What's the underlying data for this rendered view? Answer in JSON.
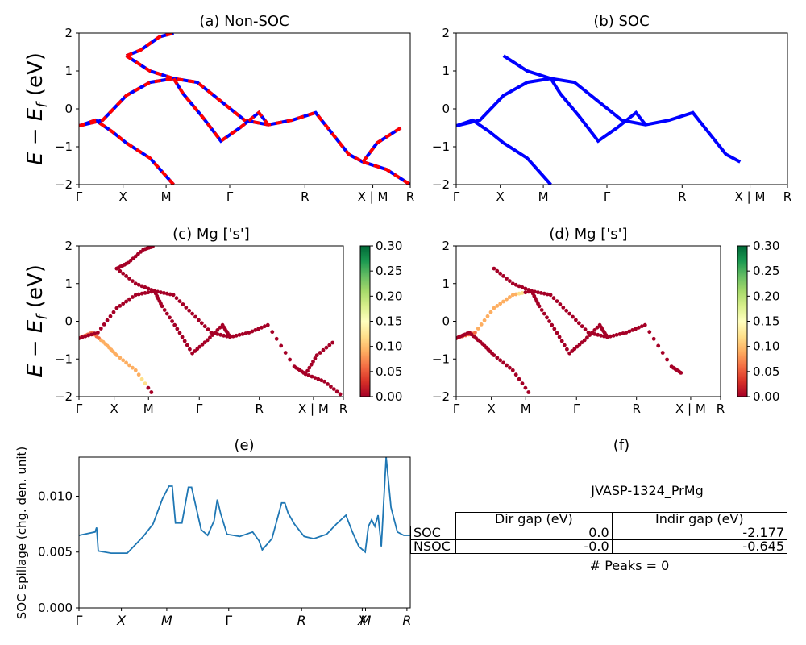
{
  "panels": {
    "a": {
      "title": "(a) Non-SOC"
    },
    "b": {
      "title": "(b) SOC"
    },
    "c": {
      "title": "(c)  Mg ['s']"
    },
    "d": {
      "title": "(d) Mg ['s']"
    },
    "e": {
      "title": "(e)"
    },
    "f": {
      "title": "(f)"
    }
  },
  "ylabel_band": "E − E",
  "ylabel_sub": "f",
  "ylabel_unit": " (eV)",
  "kpath": [
    "Γ",
    "X",
    "M",
    "Γ",
    "R",
    "X | M",
    "R"
  ],
  "kpath_spillage": [
    "Γ",
    "X",
    "M",
    "Γ",
    "R",
    "X",
    "M",
    "R"
  ],
  "colorbar": {
    "ticks": [
      "0.30",
      "0.25",
      "0.20",
      "0.15",
      "0.10",
      "0.05",
      "0.00"
    ]
  },
  "colors": {
    "nonsoc_red": "#ff0000",
    "nonsoc_blue": "#0000ff",
    "soc_blue": "#0000ff",
    "spillage_line": "#1f77b4"
  },
  "info": {
    "material": "JVASP-1324_PrMg",
    "col_headers": [
      "Dir gap (eV)",
      "Indir gap (eV)"
    ],
    "rows": [
      {
        "label": "SOC",
        "dir": "0.0",
        "indir": "-2.177"
      },
      {
        "label": "NSOC",
        "dir": "-0.0",
        "indir": "-0.645"
      }
    ],
    "peaks": "# Peaks = 0"
  },
  "chart_data": [
    {
      "type": "line",
      "title": "(a) Non-SOC",
      "ylabel": "E − E_f (eV)",
      "ylim": [
        -2,
        2
      ],
      "yticks": [
        -2,
        -1,
        0,
        1,
        2
      ],
      "x_ticks": [
        "Γ",
        "X",
        "M",
        "Γ",
        "R",
        "X | M",
        "R"
      ],
      "series": [
        {
          "values": [
            [
              0,
              -0.45
            ],
            [
              0.35,
              -0.3
            ],
            [
              0.7,
              -0.6
            ],
            [
              1,
              -0.9
            ],
            [
              1.5,
              -1.3
            ],
            [
              2,
              -2
            ]
          ]
        },
        {
          "values": [
            [
              0,
              -0.45
            ],
            [
              0.5,
              -0.3
            ],
            [
              1,
              0.35
            ],
            [
              1.5,
              0.7
            ],
            [
              2,
              0.8
            ],
            [
              2.5,
              0.7
            ],
            [
              3,
              0.2
            ],
            [
              3.5,
              -0.3
            ],
            [
              4,
              -0.42
            ],
            [
              4.5,
              -0.3
            ],
            [
              5,
              -0.1
            ],
            [
              5.7,
              -1.2
            ],
            [
              6,
              -1.4
            ]
          ]
        },
        {
          "values": [
            [
              1,
              1.4
            ],
            [
              1.3,
              1.55
            ],
            [
              1.7,
              1.9
            ],
            [
              2,
              2
            ]
          ]
        },
        {
          "values": [
            [
              1,
              1.4
            ],
            [
              1.5,
              1.0
            ],
            [
              2,
              0.8
            ]
          ]
        },
        {
          "values": [
            [
              2,
              0.8
            ],
            [
              2.2,
              0.4
            ],
            [
              2.6,
              -0.2
            ],
            [
              3,
              -0.85
            ],
            [
              3.4,
              -0.5
            ],
            [
              3.8,
              -0.1
            ],
            [
              4,
              -0.42
            ]
          ]
        },
        {
          "values": [
            [
              6,
              -1.4
            ],
            [
              6.5,
              -1.6
            ],
            [
              7,
              -2
            ]
          ]
        },
        {
          "values": [
            [
              6,
              -1.4
            ],
            [
              6.3,
              -0.9
            ],
            [
              6.8,
              -0.5
            ]
          ]
        }
      ]
    },
    {
      "type": "line",
      "title": "(b) SOC",
      "ylabel": "",
      "ylim": [
        -2,
        2
      ],
      "yticks": [
        -2,
        -1,
        0,
        1,
        2
      ],
      "x_ticks": [
        "Γ",
        "X",
        "M",
        "Γ",
        "R",
        "X | M",
        "R"
      ],
      "series": [
        {
          "values": [
            [
              0,
              -0.45
            ],
            [
              0.5,
              -0.3
            ],
            [
              1,
              0.35
            ],
            [
              1.5,
              0.7
            ],
            [
              2,
              0.8
            ],
            [
              2.5,
              0.7
            ],
            [
              3,
              0.2
            ],
            [
              3.5,
              -0.3
            ],
            [
              4,
              -0.42
            ],
            [
              4.5,
              -0.3
            ],
            [
              5,
              -0.1
            ],
            [
              5.7,
              -1.2
            ],
            [
              6,
              -1.4
            ]
          ]
        },
        {
          "values": [
            [
              0,
              -0.45
            ],
            [
              0.35,
              -0.3
            ],
            [
              0.7,
              -0.6
            ],
            [
              1,
              -0.9
            ],
            [
              1.5,
              -1.3
            ],
            [
              2,
              -2
            ]
          ]
        },
        {
          "values": [
            [
              1,
              1.4
            ],
            [
              1.5,
              1.0
            ],
            [
              2,
              0.8
            ]
          ]
        },
        {
          "values": [
            [
              2,
              0.8
            ],
            [
              2.2,
              0.4
            ],
            [
              2.6,
              -0.2
            ],
            [
              3,
              -0.85
            ],
            [
              3.4,
              -0.5
            ],
            [
              3.8,
              -0.1
            ],
            [
              4,
              -0.42
            ]
          ]
        }
      ]
    },
    {
      "type": "scatter",
      "title": "(c)  Mg ['s']",
      "ylabel": "E − E_f (eV)",
      "ylim": [
        -2,
        2
      ],
      "colorbar_range": [
        0,
        0.3
      ],
      "x_ticks": [
        "Γ",
        "X",
        "M",
        "Γ",
        "R",
        "X | M",
        "R"
      ]
    },
    {
      "type": "scatter",
      "title": "(d) Mg ['s']",
      "ylim": [
        -2,
        2
      ],
      "colorbar_range": [
        0,
        0.3
      ],
      "x_ticks": [
        "Γ",
        "X",
        "M",
        "Γ",
        "R",
        "X | M",
        "R"
      ]
    },
    {
      "type": "line",
      "title": "(e)",
      "ylabel": "SOC spillage (chg. den. unit)",
      "ylim": [
        0,
        0.0135
      ],
      "yticks": [
        "0.000",
        "0.005",
        "0.010"
      ],
      "x_ticks": [
        "Γ",
        "X",
        "M",
        "Γ",
        "R",
        "X",
        "M",
        "R"
      ],
      "series": [
        {
          "values": [
            [
              0,
              0.0065
            ],
            [
              0.5,
              0.0068
            ],
            [
              0.55,
              0.0072
            ],
            [
              0.6,
              0.0051
            ],
            [
              1,
              0.0049
            ],
            [
              1.5,
              0.0049
            ],
            [
              2,
              0.0064
            ],
            [
              2.3,
              0.0075
            ],
            [
              2.6,
              0.0098
            ],
            [
              2.8,
              0.0109
            ],
            [
              2.9,
              0.0109
            ],
            [
              3,
              0.0076
            ],
            [
              3.2,
              0.0076
            ],
            [
              3.4,
              0.0108
            ],
            [
              3.5,
              0.0108
            ],
            [
              3.8,
              0.007
            ],
            [
              4,
              0.0065
            ],
            [
              4.2,
              0.0078
            ],
            [
              4.3,
              0.0097
            ],
            [
              4.4,
              0.0085
            ],
            [
              4.6,
              0.0066
            ],
            [
              5,
              0.0064
            ],
            [
              5.4,
              0.0068
            ],
            [
              5.6,
              0.006
            ],
            [
              5.7,
              0.0052
            ],
            [
              6,
              0.0062
            ],
            [
              6.3,
              0.0094
            ],
            [
              6.4,
              0.0094
            ],
            [
              6.5,
              0.0085
            ],
            [
              6.7,
              0.0075
            ],
            [
              7,
              0.0064
            ],
            [
              7.3,
              0.0062
            ],
            [
              7.7,
              0.0066
            ],
            [
              8,
              0.0075
            ],
            [
              8.3,
              0.0083
            ],
            [
              8.5,
              0.0068
            ],
            [
              8.7,
              0.0055
            ],
            [
              8.9,
              0.005
            ],
            [
              9,
              0.0073
            ],
            [
              9.1,
              0.0079
            ],
            [
              9.2,
              0.0073
            ],
            [
              9.3,
              0.0083
            ],
            [
              9.4,
              0.0055
            ],
            [
              9.55,
              0.0135
            ],
            [
              9.7,
              0.009
            ],
            [
              9.9,
              0.0068
            ],
            [
              10.1,
              0.0065
            ],
            [
              10.3,
              0.0065
            ]
          ]
        }
      ]
    }
  ]
}
